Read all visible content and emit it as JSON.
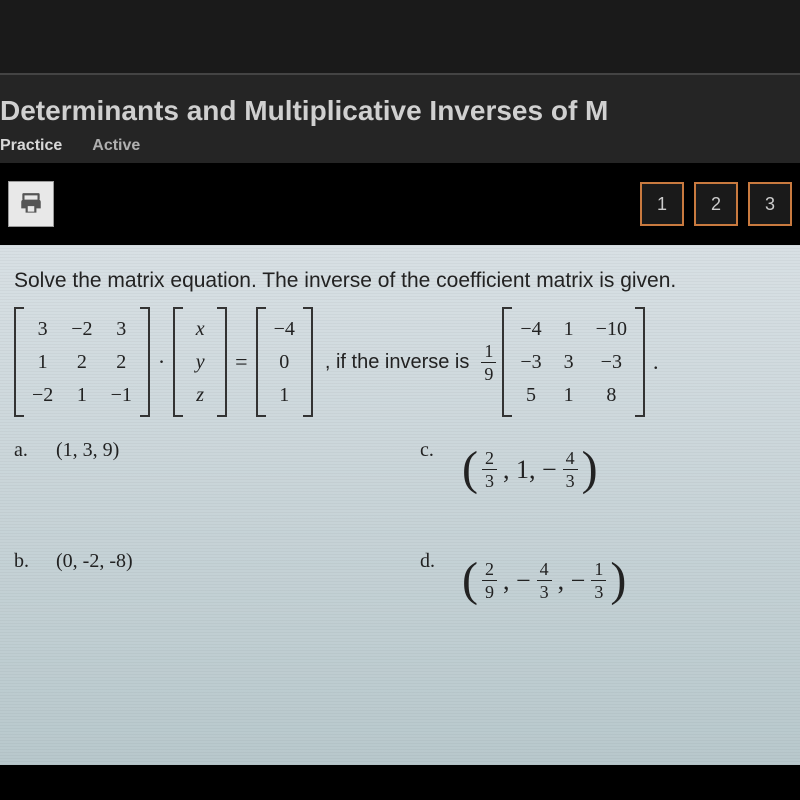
{
  "header": {
    "title": "Determinants and Multiplicative Inverses of M",
    "tabs": [
      "Practice",
      "Active"
    ]
  },
  "toolbar": {
    "pages": [
      "1",
      "2",
      "3"
    ]
  },
  "prompt": "Solve the matrix equation.  The inverse of the coefficient matrix is given.",
  "equation": {
    "A": [
      [
        "3",
        "−2",
        "3"
      ],
      [
        "1",
        "2",
        "2"
      ],
      [
        "−2",
        "1",
        "−1"
      ]
    ],
    "x": [
      "x",
      "y",
      "z"
    ],
    "b": [
      "−4",
      "0",
      "1"
    ],
    "mid": ", if the inverse is",
    "scalar": {
      "num": "1",
      "den": "9"
    },
    "Ainv": [
      [
        "−4",
        "1",
        "−10"
      ],
      [
        "−3",
        "3",
        "−3"
      ],
      [
        "5",
        "1",
        "8"
      ]
    ],
    "dot": "·",
    "eq": "=",
    "period": "."
  },
  "choices": {
    "a": {
      "label": "a.",
      "text": "(1, 3, 9)"
    },
    "b": {
      "label": "b.",
      "text": "(0, -2, -8)"
    },
    "c": {
      "label": "c.",
      "parts": [
        {
          "type": "frac",
          "num": "2",
          "den": "3"
        },
        {
          "type": "txt",
          "v": ", 1, −"
        },
        {
          "type": "frac",
          "num": "4",
          "den": "3"
        }
      ]
    },
    "d": {
      "label": "d.",
      "parts": [
        {
          "type": "frac",
          "num": "2",
          "den": "9"
        },
        {
          "type": "txt",
          "v": ", −"
        },
        {
          "type": "frac",
          "num": "4",
          "den": "3"
        },
        {
          "type": "txt",
          "v": ", −"
        },
        {
          "type": "frac",
          "num": "1",
          "den": "3"
        }
      ]
    }
  }
}
